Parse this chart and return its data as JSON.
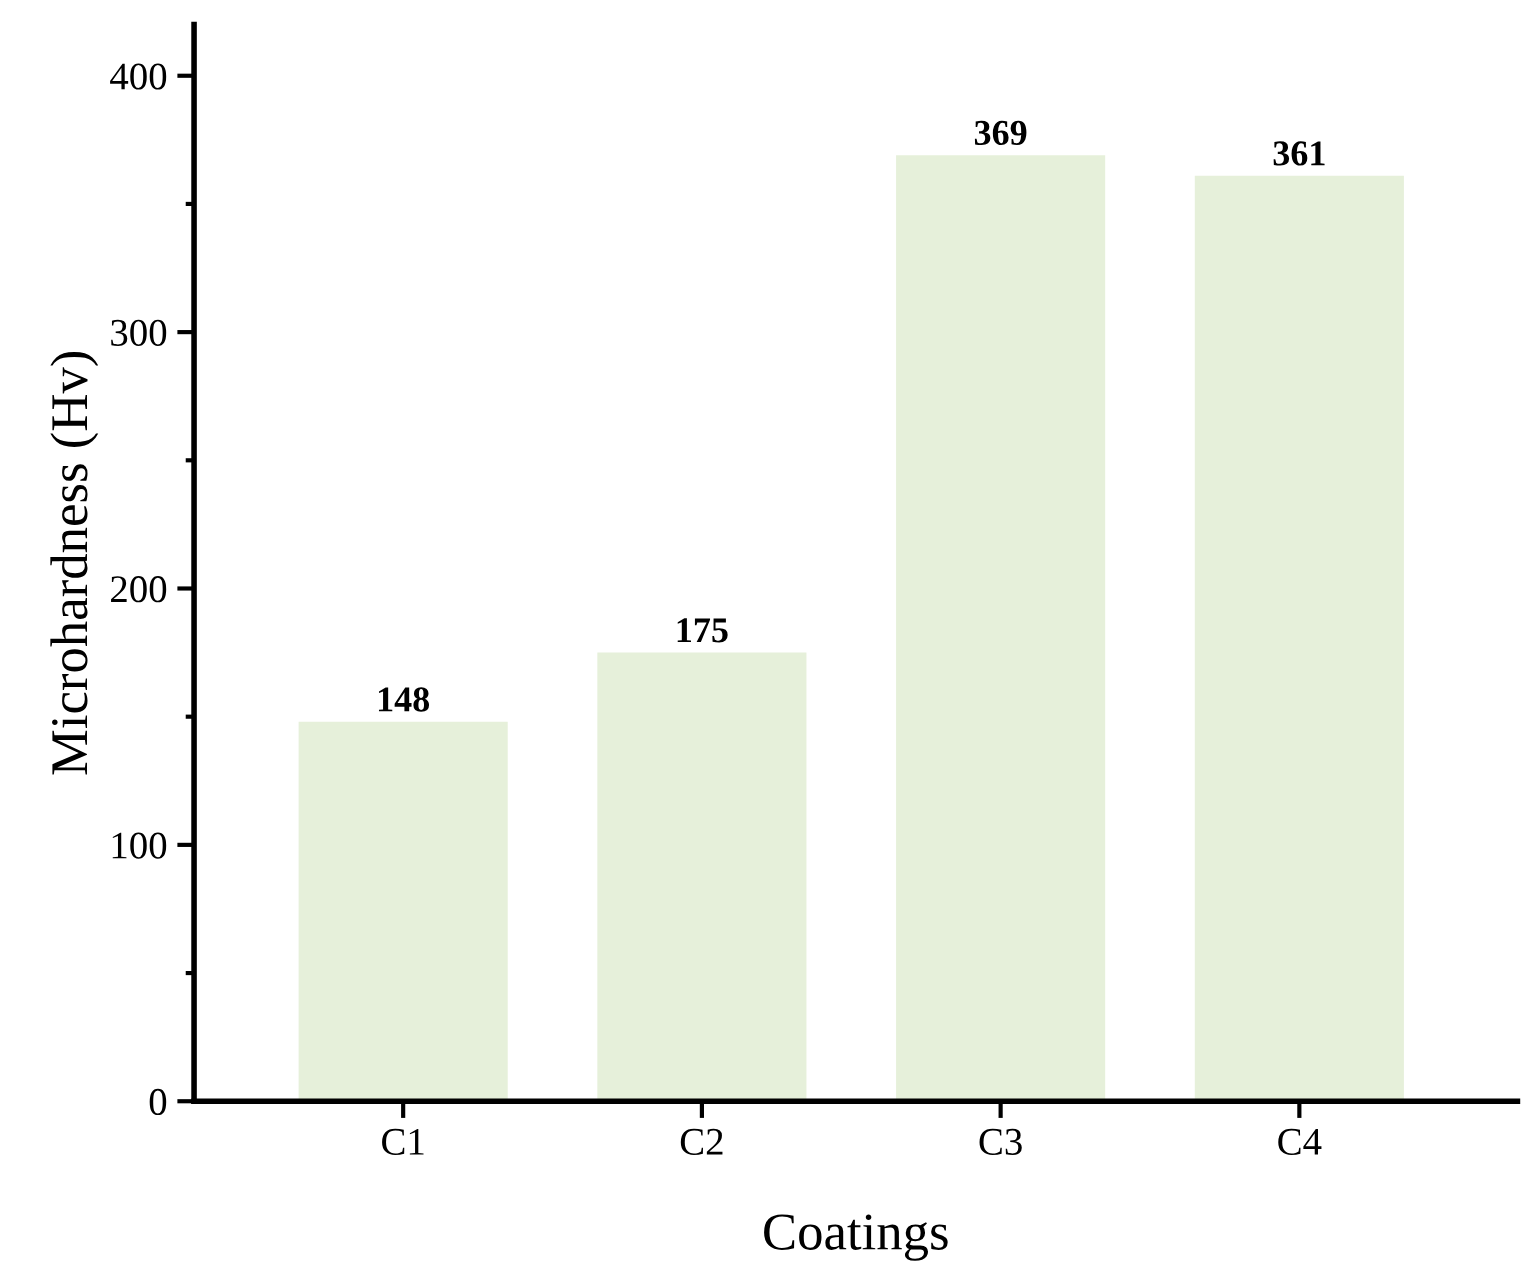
{
  "chart_data": {
    "type": "bar",
    "xlabel": "Coatings",
    "ylabel": "Microhardness (Hv)",
    "categories": [
      "C1",
      "C2",
      "C3",
      "C4"
    ],
    "values": [
      148,
      175,
      369,
      361
    ],
    "color": "#e6f0da",
    "ylim": [
      0,
      420
    ],
    "yticks": [
      0,
      100,
      200,
      300,
      400
    ],
    "data_labels": true,
    "grid": false
  }
}
